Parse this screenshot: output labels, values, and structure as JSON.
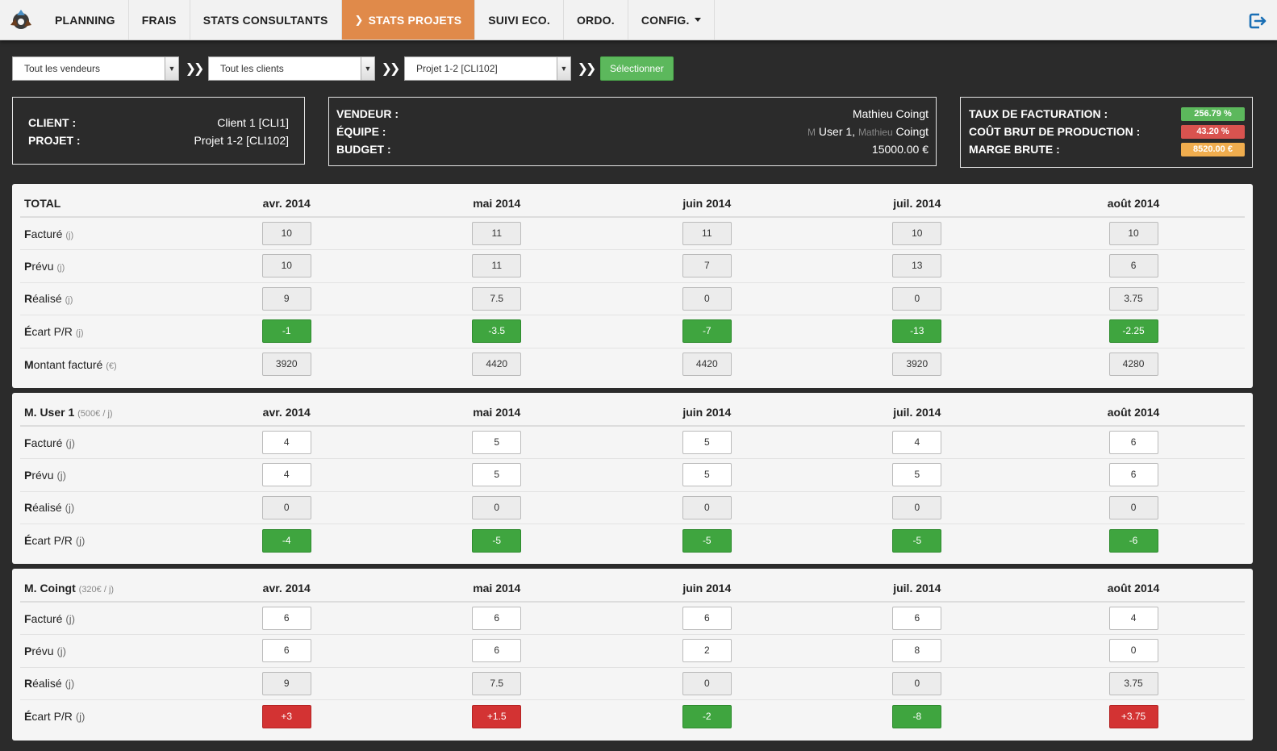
{
  "nav": {
    "items": [
      "PLANNING",
      "FRAIS",
      "STATS CONSULTANTS"
    ],
    "active": "STATS PROJETS",
    "after": [
      "SUIVI ECO.",
      "ORDO.",
      "CONFIG."
    ]
  },
  "filters": {
    "vendeurs": "Tout les vendeurs",
    "clients": "Tout les clients",
    "projet": "Projet 1-2 [CLI102]",
    "button": "Sélectionner"
  },
  "info_client": {
    "client_label": "CLIENT :",
    "client_value": "Client 1 [CLI1]",
    "projet_label": "PROJET :",
    "projet_value": "Projet 1-2 [CLI102]"
  },
  "info_vendeur": {
    "vendeur_label": "VENDEUR :",
    "vendeur_value": "Mathieu Coingt",
    "equipe_label": "ÉQUIPE :",
    "equipe_m": "M",
    "equipe_user": "User 1,",
    "equipe_first": "Mathieu",
    "equipe_last": "Coingt",
    "budget_label": "BUDGET :",
    "budget_value": "15000.00 €"
  },
  "info_stats": {
    "taux_label": "TAUX DE FACTURATION :",
    "taux_value": "256.79 %",
    "cout_label": "COÛT BRUT DE PRODUCTION :",
    "cout_value": "43.20 %",
    "marge_label": "MARGE BRUTE :",
    "marge_value": "8520.00 €",
    "colors": {
      "taux": "#5cb85c",
      "cout": "#d9534f",
      "marge": "#f0ad4e"
    }
  },
  "months": [
    "avr. 2014",
    "mai 2014",
    "juin 2014",
    "juil. 2014",
    "août 2014"
  ],
  "tables": [
    {
      "title": "TOTAL",
      "rate": "",
      "rows": [
        {
          "first": "F",
          "rest": "acturé",
          "unit": "(j)",
          "style": "grey",
          "values": [
            "10",
            "11",
            "11",
            "10",
            "10"
          ]
        },
        {
          "first": "P",
          "rest": "révu",
          "unit": "(j)",
          "style": "grey",
          "values": [
            "10",
            "11",
            "7",
            "13",
            "6"
          ]
        },
        {
          "first": "R",
          "rest": "éalisé",
          "unit": "(j)",
          "style": "grey",
          "values": [
            "9",
            "7.5",
            "0",
            "0",
            "3.75"
          ]
        },
        {
          "first": "É",
          "rest": "cart P/R",
          "unit": "(j)",
          "style": "diff",
          "values": [
            "-1",
            "-3.5",
            "-7",
            "-13",
            "-2.25"
          ]
        },
        {
          "first": "M",
          "rest": "ontant facturé",
          "unit": "(€)",
          "style": "grey",
          "values": [
            "3920",
            "4420",
            "4420",
            "3920",
            "4280"
          ]
        }
      ]
    },
    {
      "title": "M. User 1",
      "rate": "(500€ / j)",
      "rows": [
        {
          "first": "F",
          "rest": "acturé",
          "unit": "(j)",
          "style": "white",
          "values": [
            "4",
            "5",
            "5",
            "4",
            "6"
          ]
        },
        {
          "first": "P",
          "rest": "révu",
          "unit": "(j)",
          "style": "white",
          "values": [
            "4",
            "5",
            "5",
            "5",
            "6"
          ]
        },
        {
          "first": "R",
          "rest": "éalisé",
          "unit": "(j)",
          "style": "grey",
          "values": [
            "0",
            "0",
            "0",
            "0",
            "0"
          ]
        },
        {
          "first": "É",
          "rest": "cart P/R",
          "unit": "(j)",
          "style": "diff",
          "values": [
            "-4",
            "-5",
            "-5",
            "-5",
            "-6"
          ]
        }
      ]
    },
    {
      "title": "M. Coingt",
      "rate": "(320€ / j)",
      "rows": [
        {
          "first": "F",
          "rest": "acturé",
          "unit": "(j)",
          "style": "white",
          "values": [
            "6",
            "6",
            "6",
            "6",
            "4"
          ]
        },
        {
          "first": "P",
          "rest": "révu",
          "unit": "(j)",
          "style": "white",
          "values": [
            "6",
            "6",
            "2",
            "8",
            "0"
          ]
        },
        {
          "first": "R",
          "rest": "éalisé",
          "unit": "(j)",
          "style": "grey",
          "values": [
            "9",
            "7.5",
            "0",
            "0",
            "3.75"
          ]
        },
        {
          "first": "É",
          "rest": "cart P/R",
          "unit": "(j)",
          "style": "diff",
          "values": [
            "+3",
            "+1.5",
            "-2",
            "-8",
            "+3.75"
          ]
        }
      ]
    }
  ]
}
